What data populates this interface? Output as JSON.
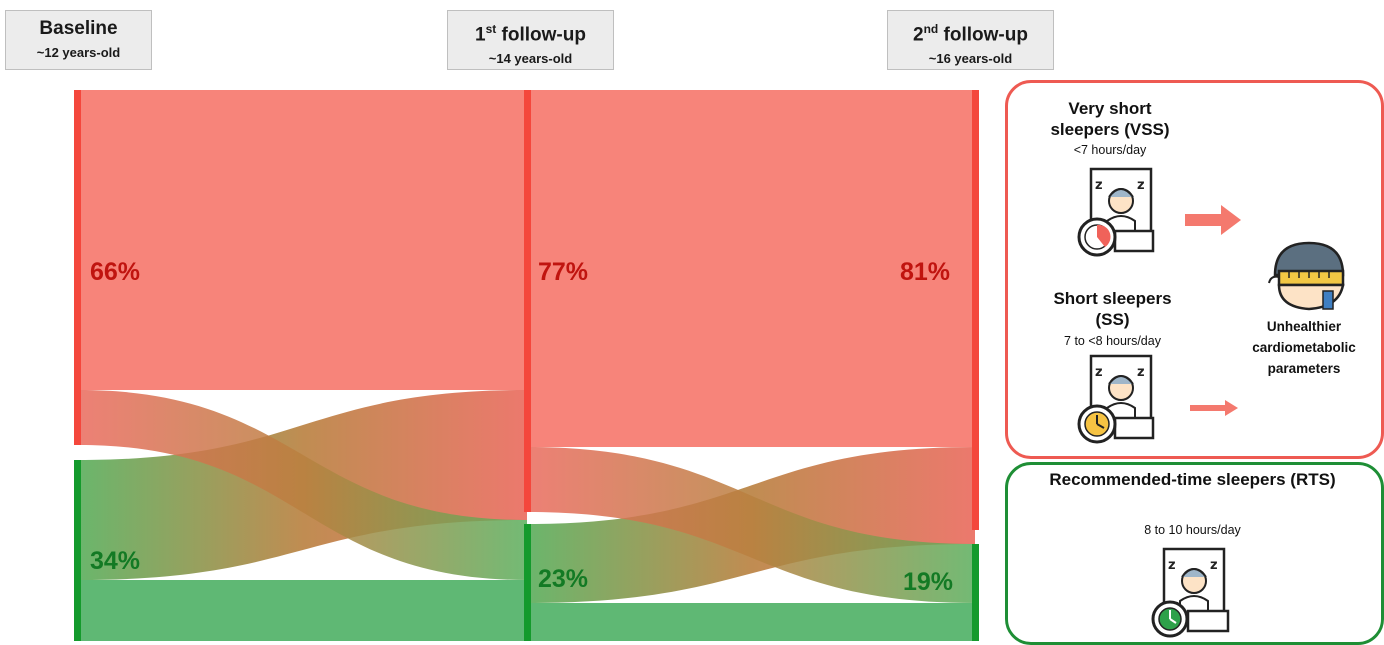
{
  "timepoints": [
    {
      "title": "Baseline",
      "sup": "",
      "age": "~12 years-old"
    },
    {
      "title": " follow-up",
      "sup": "st",
      "num": "1",
      "age": "~14 years-old"
    },
    {
      "title": " follow-up",
      "sup": "nd",
      "num": "2",
      "age": "~16 years-old"
    }
  ],
  "percentages": {
    "baseline_short": "66%",
    "baseline_rec": "34%",
    "fu1_short": "77%",
    "fu1_rec": "23%",
    "fu2_short": "81%",
    "fu2_rec": "19%"
  },
  "legend": {
    "vss_title": "Very short sleepers (VSS)",
    "vss_hours": "<7 hours/day",
    "ss_title": "Short sleepers (SS)",
    "ss_hours": "7 to <8 hours/day",
    "outcome": "Unhealthier cardiometabolic parameters",
    "rts_title": "Recommended-time sleepers (RTS)",
    "rts_hours": "8 to 10 hours/day"
  },
  "colors": {
    "short": "#f47b72",
    "short_bar": "#f4473c",
    "recommended": "#5cb36f",
    "recommended_bar": "#149a2c",
    "arrow": "#f4796e"
  },
  "icons": [
    "sleeping-person-red-clock-icon",
    "sleeping-person-yellow-clock-icon",
    "sleeping-person-green-clock-icon",
    "measured-waist-person-icon"
  ]
}
